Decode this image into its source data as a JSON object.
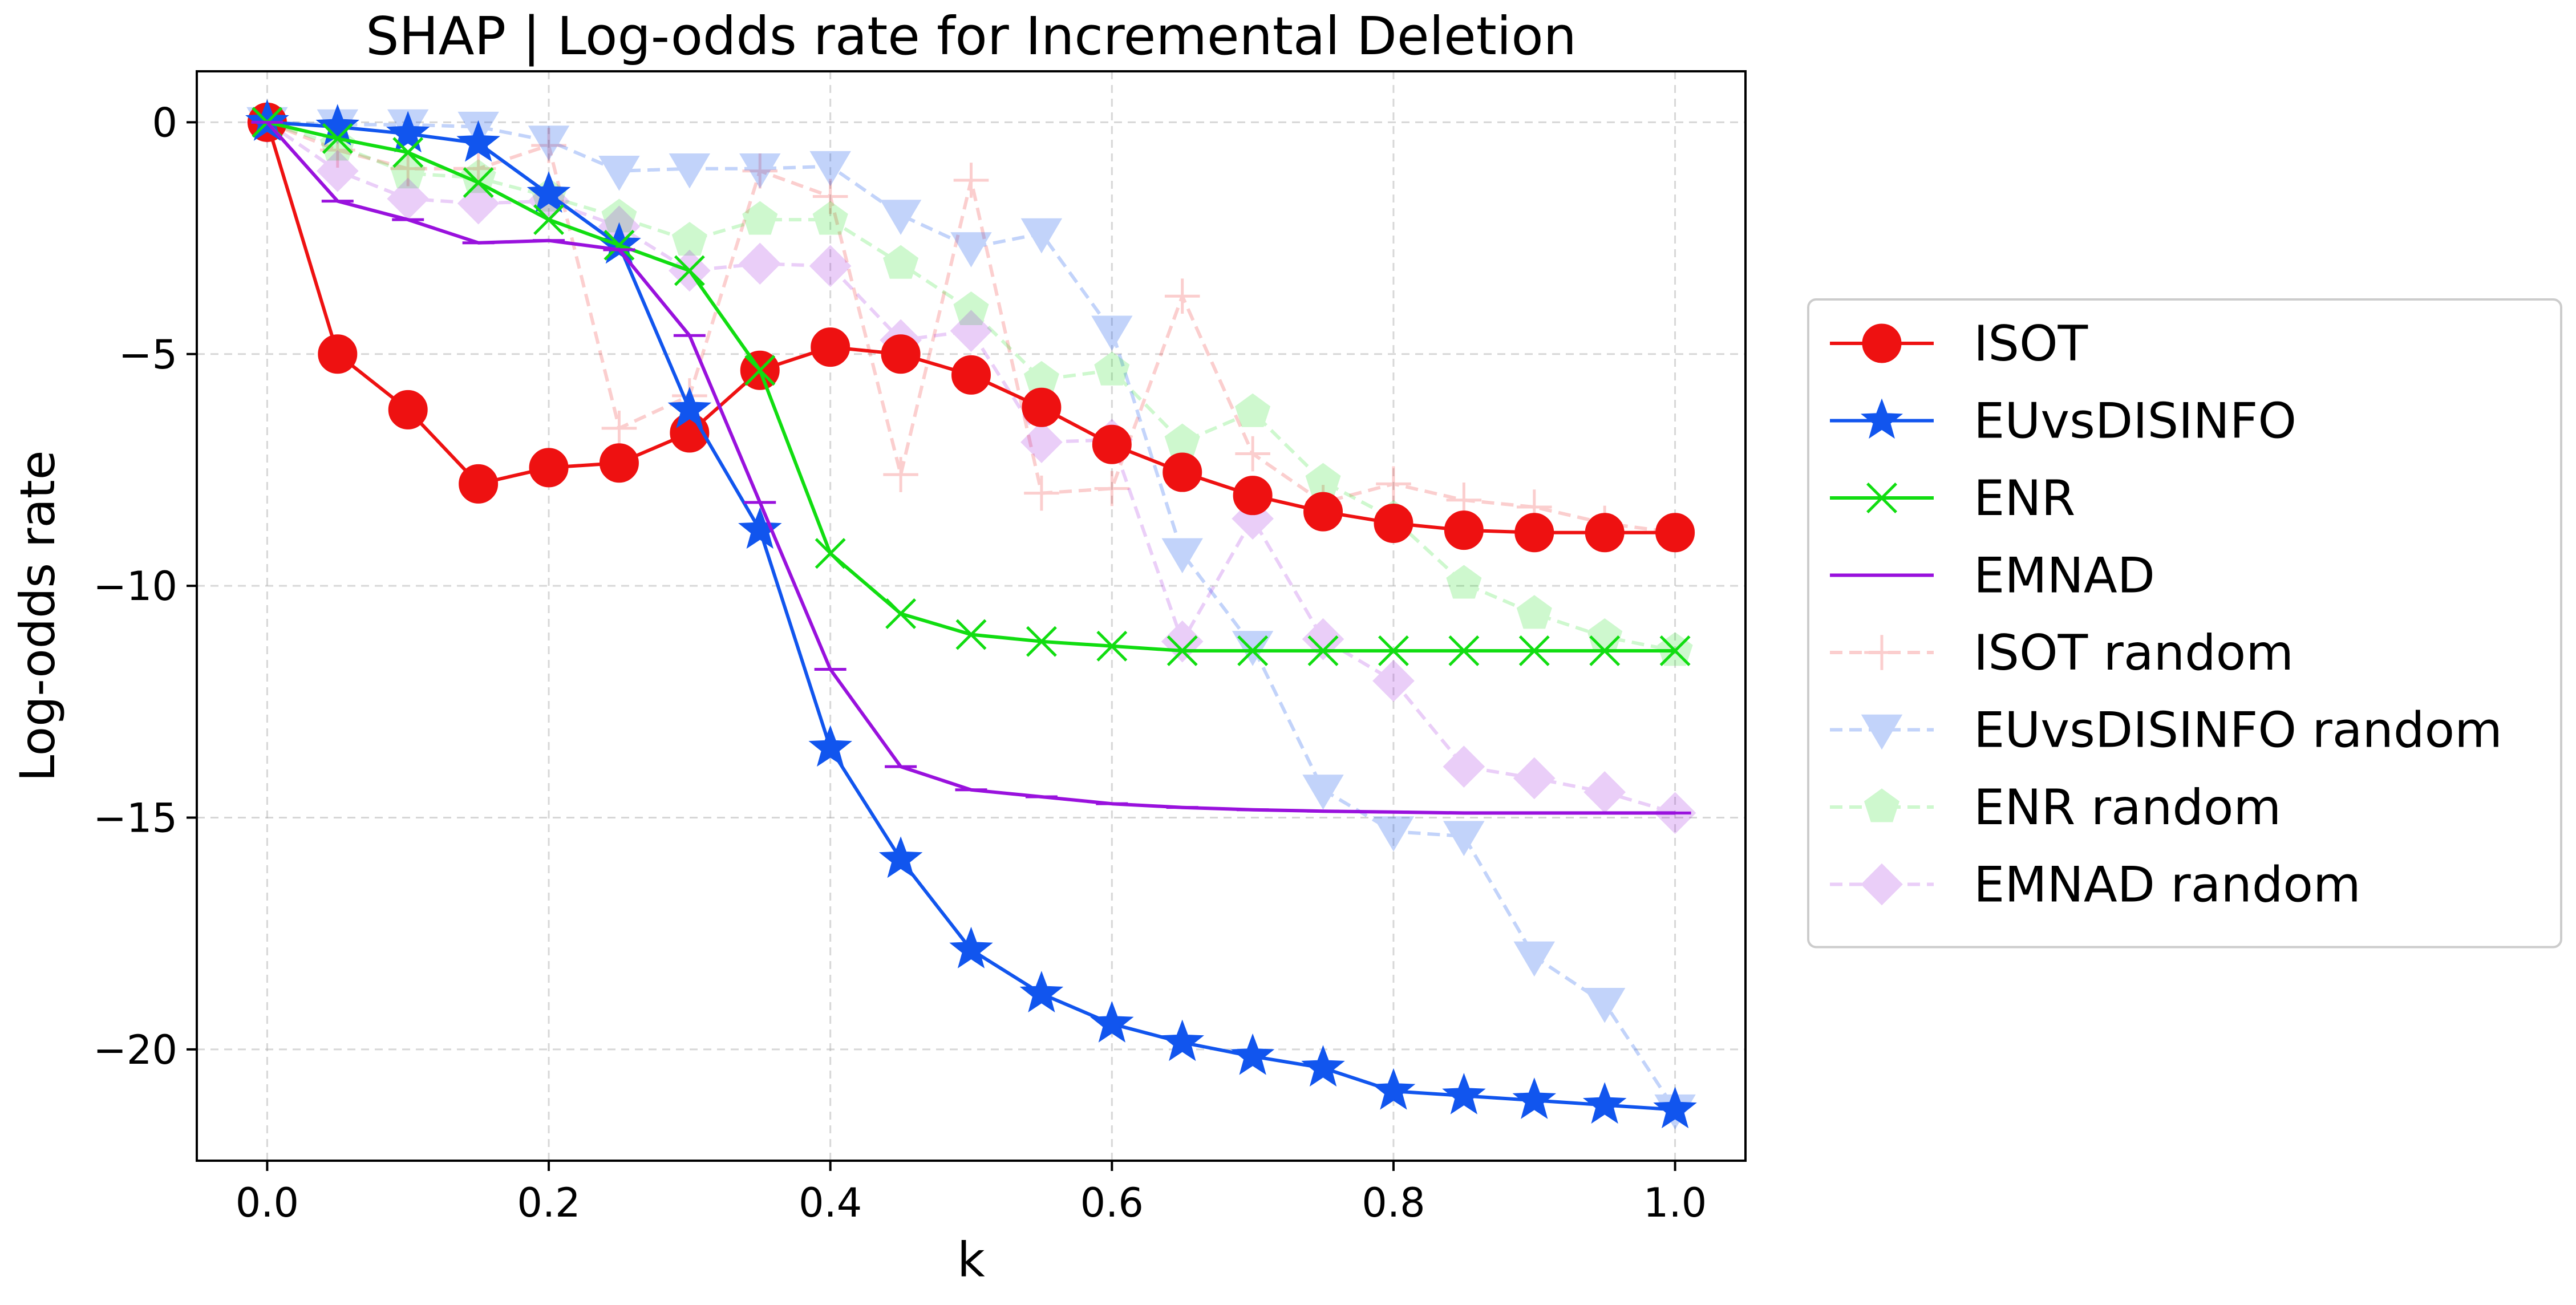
{
  "chart_data": {
    "type": "line",
    "title": "SHAP | Log-odds rate for Incremental Deletion",
    "xlabel": "k",
    "ylabel": "Log-odds rate",
    "xlim": [
      -0.05,
      1.05
    ],
    "ylim": [
      -22.4,
      1.1
    ],
    "xticks": [
      0.0,
      0.2,
      0.4,
      0.6,
      0.8,
      1.0
    ],
    "xtick_labels": [
      "0.0",
      "0.2",
      "0.4",
      "0.6",
      "0.8",
      "1.0"
    ],
    "yticks": [
      0,
      -5,
      -10,
      -15,
      -20
    ],
    "ytick_labels": [
      "0",
      "−5",
      "−10",
      "−15",
      "−20"
    ],
    "grid": true,
    "legend_position": "outside-right",
    "x": [
      0.0,
      0.05,
      0.1,
      0.15,
      0.2,
      0.25,
      0.3,
      0.35,
      0.4,
      0.45,
      0.5,
      0.55,
      0.6,
      0.65,
      0.7,
      0.75,
      0.8,
      0.85,
      0.9,
      0.95,
      1.0
    ],
    "series": [
      {
        "name": "ISOT",
        "color": "#ee1111",
        "marker": "circle",
        "dashed": false,
        "opacity": 1,
        "values": [
          0,
          -5.0,
          -6.2,
          -7.8,
          -7.45,
          -7.35,
          -6.7,
          -5.35,
          -4.85,
          -5.0,
          -5.45,
          -6.15,
          -6.95,
          -7.55,
          -8.05,
          -8.4,
          -8.65,
          -8.8,
          -8.85,
          -8.85,
          -8.85
        ]
      },
      {
        "name": "EUvsDISINFO",
        "color": "#1155ee",
        "marker": "star",
        "dashed": false,
        "opacity": 1,
        "values": [
          0,
          -0.1,
          -0.25,
          -0.45,
          -1.55,
          -2.65,
          -6.2,
          -8.8,
          -13.5,
          -15.9,
          -17.85,
          -18.8,
          -19.45,
          -19.85,
          -20.15,
          -20.4,
          -20.9,
          -21.0,
          -21.1,
          -21.2,
          -21.3
        ]
      },
      {
        "name": "ENR",
        "color": "#11dd11",
        "marker": "x",
        "dashed": false,
        "opacity": 1,
        "values": [
          0,
          -0.35,
          -0.65,
          -1.3,
          -2.1,
          -2.65,
          -3.2,
          -5.35,
          -9.3,
          -10.6,
          -11.05,
          -11.2,
          -11.3,
          -11.4,
          -11.4,
          -11.4,
          -11.4,
          -11.4,
          -11.4,
          -11.4,
          -11.4
        ]
      },
      {
        "name": "EMNAD",
        "color": "#9911dd",
        "marker": "hline",
        "dashed": false,
        "opacity": 1,
        "values": [
          0,
          -1.7,
          -2.1,
          -2.6,
          -2.55,
          -2.75,
          -4.6,
          -8.2,
          -11.8,
          -13.9,
          -14.4,
          -14.55,
          -14.7,
          -14.78,
          -14.83,
          -14.86,
          -14.88,
          -14.9,
          -14.9,
          -14.9,
          -14.9
        ]
      },
      {
        "name": "ISOT random",
        "color": "#ee1111",
        "marker": "plus",
        "dashed": true,
        "opacity": 0.2,
        "values": [
          0,
          -0.6,
          -1.0,
          -1.0,
          -0.5,
          -6.6,
          -5.9,
          -1.05,
          -1.6,
          -7.6,
          -1.25,
          -8.0,
          -7.9,
          -3.75,
          -7.15,
          -8.2,
          -7.8,
          -8.15,
          -8.3,
          -8.65,
          -8.85
        ]
      },
      {
        "name": "EUvsDISINFO random",
        "color": "#1155ee",
        "marker": "triangle-down",
        "dashed": true,
        "opacity": 0.25,
        "values": [
          0,
          -0.05,
          -0.05,
          -0.1,
          -0.4,
          -1.05,
          -1.0,
          -1.0,
          -0.95,
          -2.0,
          -2.7,
          -2.4,
          -4.5,
          -9.3,
          -11.3,
          -14.4,
          -15.3,
          -15.4,
          -18.0,
          -19.0,
          -21.3
        ]
      },
      {
        "name": "ENR random",
        "color": "#11dd11",
        "marker": "pentagon",
        "dashed": true,
        "opacity": 0.2,
        "values": [
          0,
          -0.5,
          -1.1,
          -1.2,
          -1.6,
          -2.05,
          -2.55,
          -2.1,
          -2.1,
          -3.05,
          -4.05,
          -5.55,
          -5.35,
          -6.9,
          -6.25,
          -7.75,
          -8.55,
          -9.95,
          -10.6,
          -11.1,
          -11.4
        ]
      },
      {
        "name": "EMNAD random",
        "color": "#9911dd",
        "marker": "diamond",
        "dashed": true,
        "opacity": 0.2,
        "values": [
          0,
          -1.05,
          -1.65,
          -1.75,
          -1.7,
          -2.25,
          -3.2,
          -3.05,
          -3.1,
          -4.7,
          -4.5,
          -6.9,
          -6.85,
          -11.2,
          -8.55,
          -11.15,
          -12.05,
          -13.9,
          -14.15,
          -14.45,
          -14.9
        ]
      }
    ]
  }
}
